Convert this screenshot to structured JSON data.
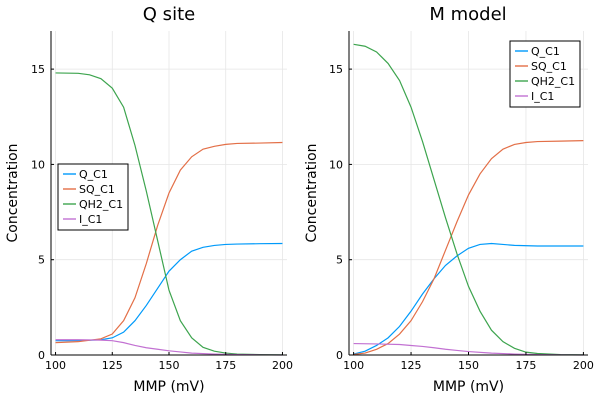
{
  "chart_data": [
    {
      "type": "line",
      "title": "Q site",
      "xlabel": "MMP (mV)",
      "ylabel": "Concentration",
      "xlim": [
        98,
        202
      ],
      "ylim": [
        0,
        17
      ],
      "xticks": [
        100,
        125,
        150,
        175,
        200
      ],
      "yticks": [
        0,
        5,
        10,
        15
      ],
      "grid": true,
      "legend": "center-left",
      "series": [
        {
          "name": "Q_C1",
          "color": "#009AFA",
          "x": [
            100,
            110,
            120,
            125,
            130,
            135,
            140,
            145,
            150,
            155,
            160,
            165,
            170,
            175,
            180,
            190,
            200
          ],
          "y": [
            0.75,
            0.75,
            0.8,
            0.9,
            1.2,
            1.8,
            2.6,
            3.5,
            4.4,
            5.0,
            5.45,
            5.65,
            5.75,
            5.8,
            5.82,
            5.84,
            5.85
          ]
        },
        {
          "name": "SQ_C1",
          "color": "#E36F47",
          "x": [
            100,
            110,
            120,
            125,
            130,
            135,
            140,
            145,
            150,
            155,
            160,
            165,
            170,
            175,
            180,
            190,
            200
          ],
          "y": [
            0.65,
            0.7,
            0.85,
            1.1,
            1.8,
            3.0,
            4.8,
            6.8,
            8.5,
            9.7,
            10.4,
            10.8,
            10.95,
            11.05,
            11.1,
            11.12,
            11.15
          ]
        },
        {
          "name": "QH2_C1",
          "color": "#3DA44E",
          "x": [
            100,
            110,
            115,
            120,
            125,
            130,
            135,
            140,
            145,
            150,
            155,
            160,
            165,
            170,
            175,
            180,
            190,
            200
          ],
          "y": [
            14.8,
            14.78,
            14.7,
            14.5,
            14.0,
            13.0,
            11.0,
            8.6,
            6.0,
            3.4,
            1.8,
            0.9,
            0.4,
            0.2,
            0.1,
            0.05,
            0.02,
            0.01
          ]
        },
        {
          "name": "I_C1",
          "color": "#C271D2",
          "x": [
            100,
            110,
            120,
            125,
            130,
            135,
            140,
            145,
            150,
            155,
            160,
            170,
            180,
            190,
            200
          ],
          "y": [
            0.8,
            0.8,
            0.78,
            0.75,
            0.65,
            0.5,
            0.38,
            0.3,
            0.22,
            0.16,
            0.1,
            0.05,
            0.02,
            0.01,
            0.0
          ]
        }
      ]
    },
    {
      "type": "line",
      "title": "M model",
      "xlabel": "MMP (mV)",
      "ylabel": "Concentration",
      "xlim": [
        98,
        202
      ],
      "ylim": [
        0,
        17
      ],
      "xticks": [
        100,
        125,
        150,
        175,
        200
      ],
      "yticks": [
        0,
        5,
        10,
        15
      ],
      "grid": true,
      "legend": "top-right",
      "series": [
        {
          "name": "Q_C1",
          "color": "#009AFA",
          "x": [
            100,
            105,
            110,
            115,
            120,
            125,
            130,
            135,
            140,
            145,
            150,
            155,
            160,
            165,
            170,
            180,
            190,
            200
          ],
          "y": [
            0.05,
            0.2,
            0.5,
            0.9,
            1.5,
            2.3,
            3.2,
            4.0,
            4.7,
            5.2,
            5.6,
            5.8,
            5.85,
            5.8,
            5.75,
            5.72,
            5.72,
            5.72
          ]
        },
        {
          "name": "SQ_C1",
          "color": "#E36F47",
          "x": [
            100,
            105,
            110,
            115,
            120,
            125,
            130,
            135,
            140,
            145,
            150,
            155,
            160,
            165,
            170,
            175,
            180,
            190,
            200
          ],
          "y": [
            0.03,
            0.1,
            0.3,
            0.6,
            1.1,
            1.8,
            2.8,
            4.0,
            5.5,
            7.0,
            8.4,
            9.5,
            10.3,
            10.8,
            11.05,
            11.15,
            11.2,
            11.22,
            11.25
          ]
        },
        {
          "name": "QH2_C1",
          "color": "#3DA44E",
          "x": [
            100,
            105,
            110,
            115,
            120,
            125,
            130,
            135,
            140,
            145,
            150,
            155,
            160,
            165,
            170,
            175,
            180,
            190,
            200
          ],
          "y": [
            16.3,
            16.2,
            15.9,
            15.3,
            14.4,
            13.0,
            11.2,
            9.2,
            7.2,
            5.3,
            3.6,
            2.3,
            1.3,
            0.7,
            0.35,
            0.15,
            0.08,
            0.02,
            0.01
          ]
        },
        {
          "name": "I_C1",
          "color": "#C271D2",
          "x": [
            100,
            110,
            120,
            125,
            130,
            135,
            140,
            145,
            150,
            160,
            170,
            180,
            190,
            200
          ],
          "y": [
            0.6,
            0.58,
            0.55,
            0.5,
            0.45,
            0.38,
            0.3,
            0.24,
            0.18,
            0.1,
            0.05,
            0.02,
            0.01,
            0.0
          ]
        }
      ]
    }
  ]
}
